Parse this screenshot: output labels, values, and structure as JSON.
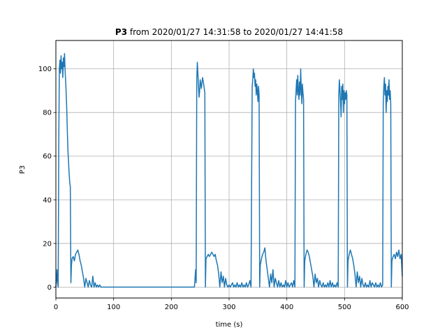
{
  "chart_data": {
    "type": "line",
    "title_bold": "P3",
    "title_rest": " from 2020/01/27 14:31:58 to 2020/01/27 14:41:58",
    "xlabel": "time (s)",
    "ylabel": "P3",
    "xlim": [
      0,
      600
    ],
    "ylim": [
      -5,
      113
    ],
    "xticks": [
      0,
      100,
      200,
      300,
      400,
      500,
      600
    ],
    "yticks": [
      0,
      20,
      40,
      60,
      80,
      100
    ],
    "grid": true,
    "series": [
      {
        "color": "#1f77b4",
        "points": [
          [
            0,
            0
          ],
          [
            1,
            3
          ],
          [
            2,
            8
          ],
          [
            3,
            2
          ],
          [
            4,
            0
          ],
          [
            5,
            65
          ],
          [
            6,
            100
          ],
          [
            7,
            104
          ],
          [
            8,
            98
          ],
          [
            9,
            106
          ],
          [
            10,
            100
          ],
          [
            11,
            103
          ],
          [
            12,
            96
          ],
          [
            13,
            105
          ],
          [
            14,
            101
          ],
          [
            15,
            107
          ],
          [
            16,
            99
          ],
          [
            17,
            94
          ],
          [
            18,
            88
          ],
          [
            19,
            80
          ],
          [
            20,
            70
          ],
          [
            21,
            62
          ],
          [
            22,
            57
          ],
          [
            23,
            52
          ],
          [
            24,
            48
          ],
          [
            25,
            46
          ],
          [
            26,
            2
          ],
          [
            27,
            10
          ],
          [
            28,
            13
          ],
          [
            30,
            14
          ],
          [
            32,
            12
          ],
          [
            34,
            15
          ],
          [
            36,
            16
          ],
          [
            38,
            17
          ],
          [
            40,
            15
          ],
          [
            42,
            12
          ],
          [
            44,
            10
          ],
          [
            46,
            7
          ],
          [
            48,
            4
          ],
          [
            50,
            0
          ],
          [
            52,
            4
          ],
          [
            54,
            2
          ],
          [
            56,
            0
          ],
          [
            58,
            3
          ],
          [
            60,
            1
          ],
          [
            62,
            0
          ],
          [
            64,
            5
          ],
          [
            66,
            0
          ],
          [
            68,
            2
          ],
          [
            70,
            0
          ],
          [
            72,
            1
          ],
          [
            74,
            0
          ],
          [
            76,
            1
          ],
          [
            78,
            0
          ],
          [
            80,
            0
          ],
          [
            150,
            0
          ],
          [
            200,
            0
          ],
          [
            240,
            0
          ],
          [
            242,
            8
          ],
          [
            243,
            2
          ],
          [
            244,
            95
          ],
          [
            245,
            103
          ],
          [
            246,
            98
          ],
          [
            247,
            92
          ],
          [
            248,
            87
          ],
          [
            249,
            90
          ],
          [
            250,
            95
          ],
          [
            252,
            91
          ],
          [
            254,
            96
          ],
          [
            256,
            93
          ],
          [
            258,
            89
          ],
          [
            259,
            0
          ],
          [
            260,
            13
          ],
          [
            262,
            14
          ],
          [
            264,
            15
          ],
          [
            266,
            14
          ],
          [
            268,
            15
          ],
          [
            270,
            16
          ],
          [
            272,
            15
          ],
          [
            274,
            14
          ],
          [
            276,
            15
          ],
          [
            278,
            12
          ],
          [
            280,
            10
          ],
          [
            282,
            6
          ],
          [
            284,
            0
          ],
          [
            286,
            7
          ],
          [
            288,
            2
          ],
          [
            290,
            5
          ],
          [
            292,
            0
          ],
          [
            294,
            4
          ],
          [
            296,
            1
          ],
          [
            298,
            0
          ],
          [
            300,
            1
          ],
          [
            302,
            0
          ],
          [
            304,
            1
          ],
          [
            306,
            2
          ],
          [
            308,
            0
          ],
          [
            310,
            1
          ],
          [
            312,
            0
          ],
          [
            314,
            2
          ],
          [
            316,
            0
          ],
          [
            318,
            1
          ],
          [
            320,
            0
          ],
          [
            322,
            2
          ],
          [
            324,
            0
          ],
          [
            326,
            1
          ],
          [
            328,
            0
          ],
          [
            330,
            2
          ],
          [
            332,
            0
          ],
          [
            334,
            1
          ],
          [
            336,
            3
          ],
          [
            338,
            0
          ],
          [
            340,
            92
          ],
          [
            341,
            95
          ],
          [
            342,
            100
          ],
          [
            343,
            96
          ],
          [
            344,
            98
          ],
          [
            345,
            92
          ],
          [
            346,
            95
          ],
          [
            347,
            88
          ],
          [
            348,
            93
          ],
          [
            349,
            90
          ],
          [
            350,
            85
          ],
          [
            351,
            92
          ],
          [
            352,
            88
          ],
          [
            353,
            0
          ],
          [
            354,
            10
          ],
          [
            356,
            13
          ],
          [
            358,
            15
          ],
          [
            360,
            16
          ],
          [
            362,
            18
          ],
          [
            364,
            12
          ],
          [
            366,
            8
          ],
          [
            368,
            4
          ],
          [
            370,
            0
          ],
          [
            372,
            6
          ],
          [
            374,
            2
          ],
          [
            376,
            8
          ],
          [
            378,
            0
          ],
          [
            380,
            4
          ],
          [
            382,
            2
          ],
          [
            384,
            0
          ],
          [
            386,
            3
          ],
          [
            388,
            0
          ],
          [
            390,
            2
          ],
          [
            392,
            0
          ],
          [
            394,
            1
          ],
          [
            396,
            0
          ],
          [
            398,
            3
          ],
          [
            400,
            0
          ],
          [
            402,
            2
          ],
          [
            404,
            0
          ],
          [
            406,
            1
          ],
          [
            408,
            2
          ],
          [
            410,
            0
          ],
          [
            412,
            3
          ],
          [
            414,
            0
          ],
          [
            415,
            85
          ],
          [
            416,
            90
          ],
          [
            417,
            95
          ],
          [
            418,
            88
          ],
          [
            419,
            97
          ],
          [
            420,
            90
          ],
          [
            421,
            86
          ],
          [
            422,
            94
          ],
          [
            423,
            88
          ],
          [
            424,
            100
          ],
          [
            425,
            91
          ],
          [
            426,
            84
          ],
          [
            427,
            93
          ],
          [
            428,
            89
          ],
          [
            429,
            86
          ],
          [
            430,
            0
          ],
          [
            431,
            12
          ],
          [
            433,
            15
          ],
          [
            435,
            17
          ],
          [
            437,
            16
          ],
          [
            439,
            14
          ],
          [
            441,
            11
          ],
          [
            443,
            8
          ],
          [
            445,
            5
          ],
          [
            447,
            0
          ],
          [
            449,
            6
          ],
          [
            451,
            2
          ],
          [
            453,
            4
          ],
          [
            455,
            0
          ],
          [
            457,
            3
          ],
          [
            459,
            1
          ],
          [
            461,
            0
          ],
          [
            463,
            2
          ],
          [
            465,
            0
          ],
          [
            467,
            1
          ],
          [
            469,
            0
          ],
          [
            471,
            2
          ],
          [
            473,
            0
          ],
          [
            475,
            3
          ],
          [
            477,
            0
          ],
          [
            479,
            2
          ],
          [
            481,
            0
          ],
          [
            483,
            1
          ],
          [
            485,
            0
          ],
          [
            487,
            2
          ],
          [
            489,
            0
          ],
          [
            490,
            88
          ],
          [
            491,
            95
          ],
          [
            492,
            90
          ],
          [
            493,
            85
          ],
          [
            494,
            78
          ],
          [
            495,
            92
          ],
          [
            496,
            86
          ],
          [
            497,
            93
          ],
          [
            498,
            80
          ],
          [
            499,
            90
          ],
          [
            500,
            84
          ],
          [
            501,
            89
          ],
          [
            502,
            86
          ],
          [
            503,
            90
          ],
          [
            504,
            88
          ],
          [
            505,
            0
          ],
          [
            506,
            12
          ],
          [
            508,
            15
          ],
          [
            510,
            17
          ],
          [
            512,
            15
          ],
          [
            514,
            13
          ],
          [
            516,
            10
          ],
          [
            518,
            6
          ],
          [
            520,
            0
          ],
          [
            522,
            7
          ],
          [
            524,
            2
          ],
          [
            526,
            5
          ],
          [
            528,
            0
          ],
          [
            530,
            4
          ],
          [
            532,
            1
          ],
          [
            534,
            0
          ],
          [
            536,
            2
          ],
          [
            538,
            0
          ],
          [
            540,
            1
          ],
          [
            542,
            0
          ],
          [
            544,
            3
          ],
          [
            546,
            0
          ],
          [
            548,
            2
          ],
          [
            550,
            1
          ],
          [
            552,
            0
          ],
          [
            554,
            2
          ],
          [
            556,
            0
          ],
          [
            558,
            1
          ],
          [
            560,
            0
          ],
          [
            562,
            2
          ],
          [
            564,
            0
          ],
          [
            566,
            1
          ],
          [
            567,
            85
          ],
          [
            568,
            92
          ],
          [
            569,
            96
          ],
          [
            570,
            88
          ],
          [
            571,
            93
          ],
          [
            572,
            80
          ],
          [
            573,
            90
          ],
          [
            574,
            85
          ],
          [
            575,
            92
          ],
          [
            576,
            88
          ],
          [
            577,
            95
          ],
          [
            578,
            86
          ],
          [
            579,
            90
          ],
          [
            580,
            84
          ],
          [
            581,
            0
          ],
          [
            582,
            12
          ],
          [
            584,
            14
          ],
          [
            586,
            15
          ],
          [
            588,
            13
          ],
          [
            590,
            16
          ],
          [
            592,
            14
          ],
          [
            594,
            17
          ],
          [
            596,
            13
          ],
          [
            598,
            15
          ],
          [
            600,
            5
          ]
        ]
      }
    ]
  }
}
